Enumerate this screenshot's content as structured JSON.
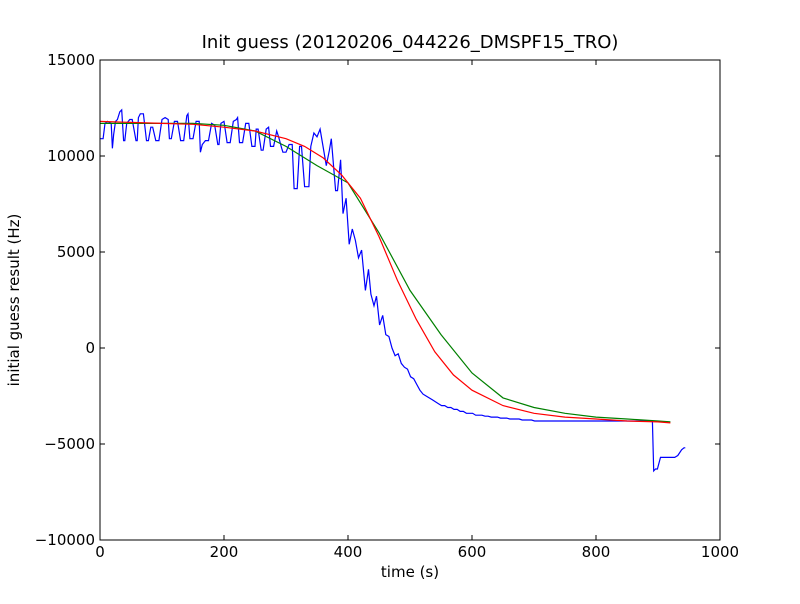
{
  "chart_data": {
    "type": "line",
    "title": "Init guess (20120206_044226_DMSPF15_TRO)",
    "xlabel": "time (s)",
    "ylabel": "initial guess result (Hz)",
    "xlim": [
      0,
      1000
    ],
    "ylim": [
      -10000,
      15000
    ],
    "xticks": [
      0,
      200,
      400,
      600,
      800,
      1000
    ],
    "yticks": [
      -10000,
      -5000,
      0,
      5000,
      10000,
      15000
    ],
    "xtick_labels": [
      "0",
      "200",
      "400",
      "600",
      "800",
      "1000"
    ],
    "ytick_labels": [
      "−10000",
      "−5000",
      "0",
      "5000",
      "10000",
      "15000"
    ],
    "grid": false,
    "legend": "none",
    "series": [
      {
        "color": "#0000ff",
        "x": [
          0,
          5,
          8,
          12,
          18,
          20,
          22,
          25,
          28,
          32,
          35,
          38,
          40,
          43,
          48,
          52,
          58,
          60,
          62,
          65,
          70,
          75,
          78,
          82,
          85,
          90,
          95,
          100,
          105,
          110,
          112,
          115,
          120,
          125,
          130,
          135,
          140,
          142,
          145,
          150,
          155,
          160,
          162,
          165,
          170,
          175,
          180,
          185,
          190,
          192,
          195,
          200,
          205,
          210,
          215,
          220,
          222,
          225,
          230,
          235,
          240,
          245,
          250,
          252,
          255,
          260,
          263,
          268,
          272,
          275,
          280,
          285,
          288,
          293,
          295,
          300,
          305,
          310,
          313,
          318,
          322,
          325,
          330,
          333,
          337,
          340,
          345,
          350,
          355,
          365,
          370,
          373,
          380,
          383,
          388,
          392,
          397,
          402,
          407,
          412,
          417,
          422,
          428,
          433,
          437,
          442,
          446,
          451,
          456,
          461,
          466,
          471,
          476,
          481,
          486,
          491,
          496,
          501,
          506,
          511,
          516,
          521,
          526,
          531,
          536,
          541,
          546,
          551,
          556,
          561,
          566,
          571,
          576,
          581,
          586,
          591,
          596,
          601,
          606,
          611,
          616,
          621,
          626,
          631,
          636,
          641,
          646,
          651,
          656,
          661,
          666,
          671,
          676,
          681,
          686,
          691,
          696,
          701,
          706,
          711,
          716,
          721,
          726,
          731,
          736,
          741,
          746,
          751,
          756,
          761,
          766,
          771,
          776,
          781,
          786,
          791,
          796,
          801,
          806,
          811,
          816,
          821,
          826,
          831,
          836,
          841,
          846,
          851,
          856,
          861,
          866,
          871,
          876,
          881,
          886,
          891,
          893,
          896,
          899,
          904,
          910,
          916,
          922,
          927,
          932,
          938,
          942,
          944
        ],
        "y": [
          10900,
          10900,
          11700,
          11800,
          11700,
          10400,
          11100,
          11800,
          11900,
          12300,
          12400,
          10800,
          10800,
          11700,
          11900,
          11900,
          10800,
          10800,
          12000,
          12200,
          12200,
          10800,
          10800,
          11500,
          11500,
          10800,
          10800,
          11900,
          12000,
          11900,
          10900,
          10900,
          11800,
          11800,
          10800,
          10800,
          12100,
          12200,
          10900,
          10900,
          11800,
          11800,
          10200,
          10600,
          10800,
          10800,
          11700,
          11600,
          10600,
          10600,
          11700,
          11800,
          10700,
          10700,
          11800,
          11900,
          12000,
          10700,
          10700,
          11700,
          11700,
          10500,
          10500,
          11400,
          11400,
          10300,
          10300,
          11400,
          11500,
          10500,
          10500,
          11300,
          11000,
          10400,
          10200,
          10200,
          10600,
          10600,
          8300,
          8300,
          10500,
          10500,
          8400,
          8400,
          8400,
          10500,
          11200,
          11000,
          11400,
          9500,
          10300,
          10900,
          8200,
          8200,
          9800,
          7000,
          7800,
          5400,
          6200,
          5600,
          4700,
          5100,
          3000,
          4100,
          2800,
          2200,
          2700,
          1200,
          1700,
          700,
          600,
          0,
          -400,
          -300,
          -800,
          -1000,
          -1100,
          -1500,
          -1600,
          -1900,
          -2200,
          -2400,
          -2500,
          -2600,
          -2700,
          -2800,
          -2900,
          -3000,
          -3000,
          -3100,
          -3100,
          -3200,
          -3200,
          -3300,
          -3300,
          -3400,
          -3400,
          -3400,
          -3500,
          -3500,
          -3500,
          -3550,
          -3550,
          -3600,
          -3600,
          -3600,
          -3650,
          -3650,
          -3650,
          -3700,
          -3700,
          -3700,
          -3700,
          -3750,
          -3750,
          -3750,
          -3750,
          -3800,
          -3800,
          -3800,
          -3800,
          -3800,
          -3800,
          -3800,
          -3800,
          -3800,
          -3800,
          -3800,
          -3800,
          -3800,
          -3800,
          -3800,
          -3800,
          -3800,
          -3800,
          -3800,
          -3800,
          -3800,
          -3800,
          -3800,
          -3800,
          -3800,
          -3800,
          -3800,
          -3800,
          -3800,
          -3800,
          -3800,
          -3800,
          -3800,
          -3800,
          -3800,
          -3800,
          -3800,
          -3800,
          -3800,
          -6400,
          -6300,
          -6300,
          -5700,
          -5700,
          -5700,
          -5700,
          -5700,
          -5600,
          -5300,
          -5200,
          -5200
        ]
      },
      {
        "color": "#008000",
        "x": [
          0,
          50,
          100,
          150,
          200,
          250,
          300,
          350,
          400,
          450,
          500,
          550,
          600,
          650,
          700,
          750,
          800,
          850,
          900,
          920
        ],
        "y": [
          11700,
          11700,
          11700,
          11700,
          11600,
          11300,
          10500,
          9500,
          8600,
          6000,
          3000,
          700,
          -1300,
          -2600,
          -3100,
          -3400,
          -3600,
          -3700,
          -3800,
          -3850
        ]
      },
      {
        "color": "#ff0000",
        "x": [
          0,
          50,
          100,
          150,
          200,
          250,
          300,
          330,
          360,
          390,
          420,
          450,
          480,
          510,
          540,
          570,
          600,
          650,
          700,
          750,
          800,
          850,
          900,
          920
        ],
        "y": [
          11800,
          11750,
          11700,
          11650,
          11500,
          11300,
          10900,
          10500,
          9900,
          9000,
          7800,
          5800,
          3500,
          1500,
          -200,
          -1400,
          -2200,
          -3000,
          -3400,
          -3600,
          -3700,
          -3800,
          -3850,
          -3900
        ]
      }
    ]
  }
}
